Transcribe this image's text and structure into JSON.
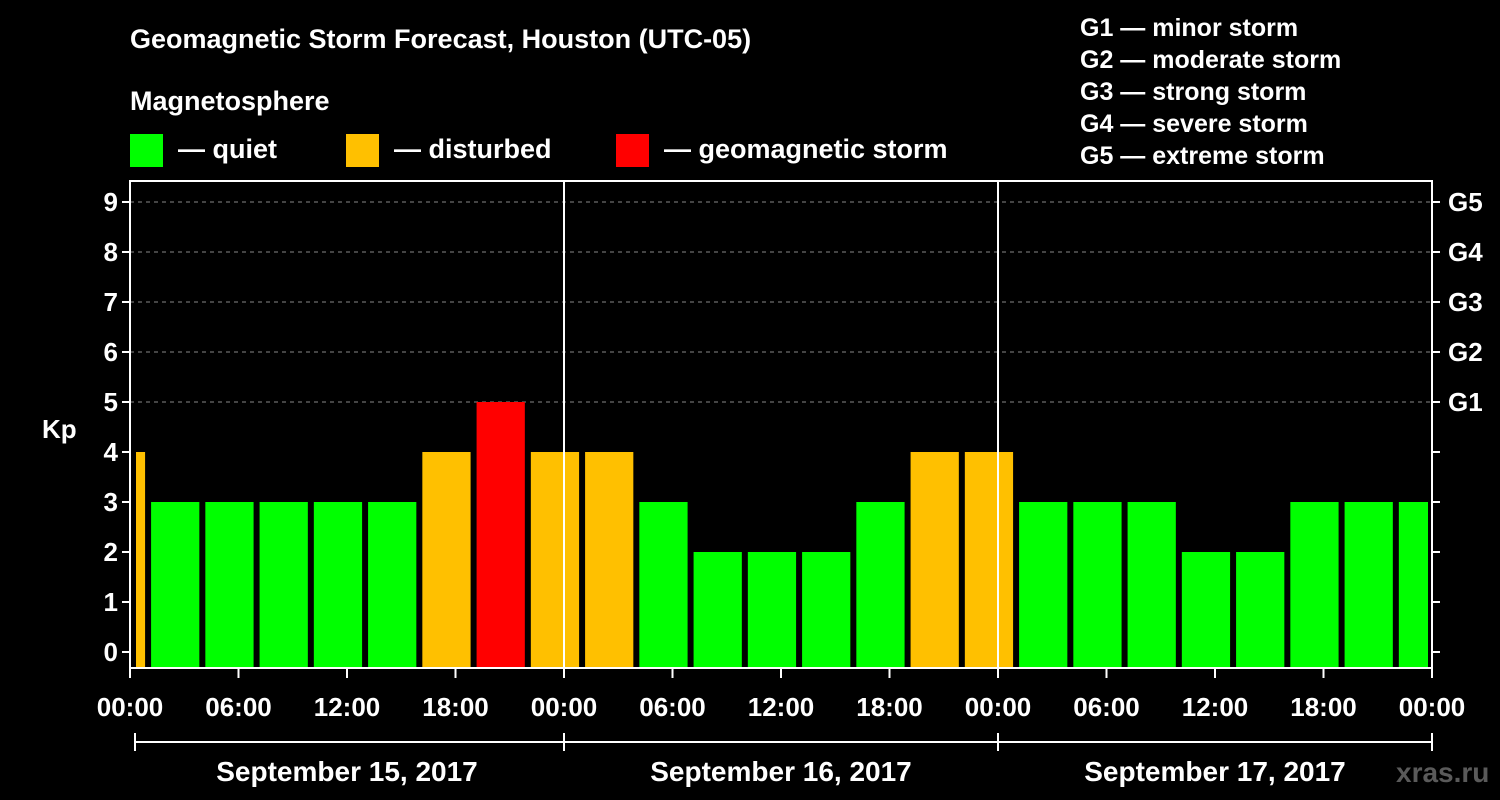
{
  "title": "Geomagnetic Storm Forecast, Houston (UTC-05)",
  "legend": {
    "heading": "Magnetosphere",
    "items": [
      {
        "label": "— quiet",
        "color": "#00ff00"
      },
      {
        "label": "— disturbed",
        "color": "#ffc000"
      },
      {
        "label": "— geomagnetic storm",
        "color": "#ff0000"
      }
    ]
  },
  "g_scale": [
    "G1 — minor storm",
    "G2 — moderate storm",
    "G3 — strong storm",
    "G4 — severe storm",
    "G5 — extreme storm"
  ],
  "brand": "xras.ru",
  "chart_data": {
    "type": "bar",
    "ylabel": "Kp",
    "ylim": [
      0,
      9
    ],
    "yticks": [
      0,
      1,
      2,
      3,
      4,
      5,
      6,
      7,
      8,
      9
    ],
    "right_ticks": [
      {
        "kp": 5,
        "label": "G1"
      },
      {
        "kp": 6,
        "label": "G2"
      },
      {
        "kp": 7,
        "label": "G3"
      },
      {
        "kp": 8,
        "label": "G4"
      },
      {
        "kp": 9,
        "label": "G5"
      }
    ],
    "x_ticks": [
      "00:00",
      "06:00",
      "12:00",
      "18:00",
      "00:00",
      "06:00",
      "12:00",
      "18:00",
      "00:00",
      "06:00",
      "12:00",
      "18:00",
      "00:00"
    ],
    "dates": [
      "September 15, 2017",
      "September 16, 2017",
      "September 17, 2017"
    ],
    "hours_span": 72,
    "bars": [
      {
        "start": 0,
        "end": 1,
        "kp": 4
      },
      {
        "start": 1,
        "end": 4,
        "kp": 3
      },
      {
        "start": 4,
        "end": 7,
        "kp": 3
      },
      {
        "start": 7,
        "end": 10,
        "kp": 3
      },
      {
        "start": 10,
        "end": 13,
        "kp": 3
      },
      {
        "start": 13,
        "end": 16,
        "kp": 3
      },
      {
        "start": 16,
        "end": 19,
        "kp": 4
      },
      {
        "start": 19,
        "end": 22,
        "kp": 5
      },
      {
        "start": 22,
        "end": 25,
        "kp": 4
      },
      {
        "start": 25,
        "end": 28,
        "kp": 4
      },
      {
        "start": 28,
        "end": 31,
        "kp": 3
      },
      {
        "start": 31,
        "end": 34,
        "kp": 2
      },
      {
        "start": 34,
        "end": 37,
        "kp": 2
      },
      {
        "start": 37,
        "end": 40,
        "kp": 2
      },
      {
        "start": 40,
        "end": 43,
        "kp": 3
      },
      {
        "start": 43,
        "end": 46,
        "kp": 4
      },
      {
        "start": 46,
        "end": 49,
        "kp": 4
      },
      {
        "start": 49,
        "end": 52,
        "kp": 3
      },
      {
        "start": 52,
        "end": 55,
        "kp": 3
      },
      {
        "start": 55,
        "end": 58,
        "kp": 3
      },
      {
        "start": 58,
        "end": 61,
        "kp": 2
      },
      {
        "start": 61,
        "end": 64,
        "kp": 2
      },
      {
        "start": 64,
        "end": 67,
        "kp": 3
      },
      {
        "start": 67,
        "end": 70,
        "kp": 3
      },
      {
        "start": 70,
        "end": 72,
        "kp": 3
      }
    ],
    "colors": {
      "quiet": "#00ff00",
      "disturbed": "#ffc000",
      "storm": "#ff0000",
      "grid": "#888888",
      "frame": "#ffffff"
    }
  }
}
